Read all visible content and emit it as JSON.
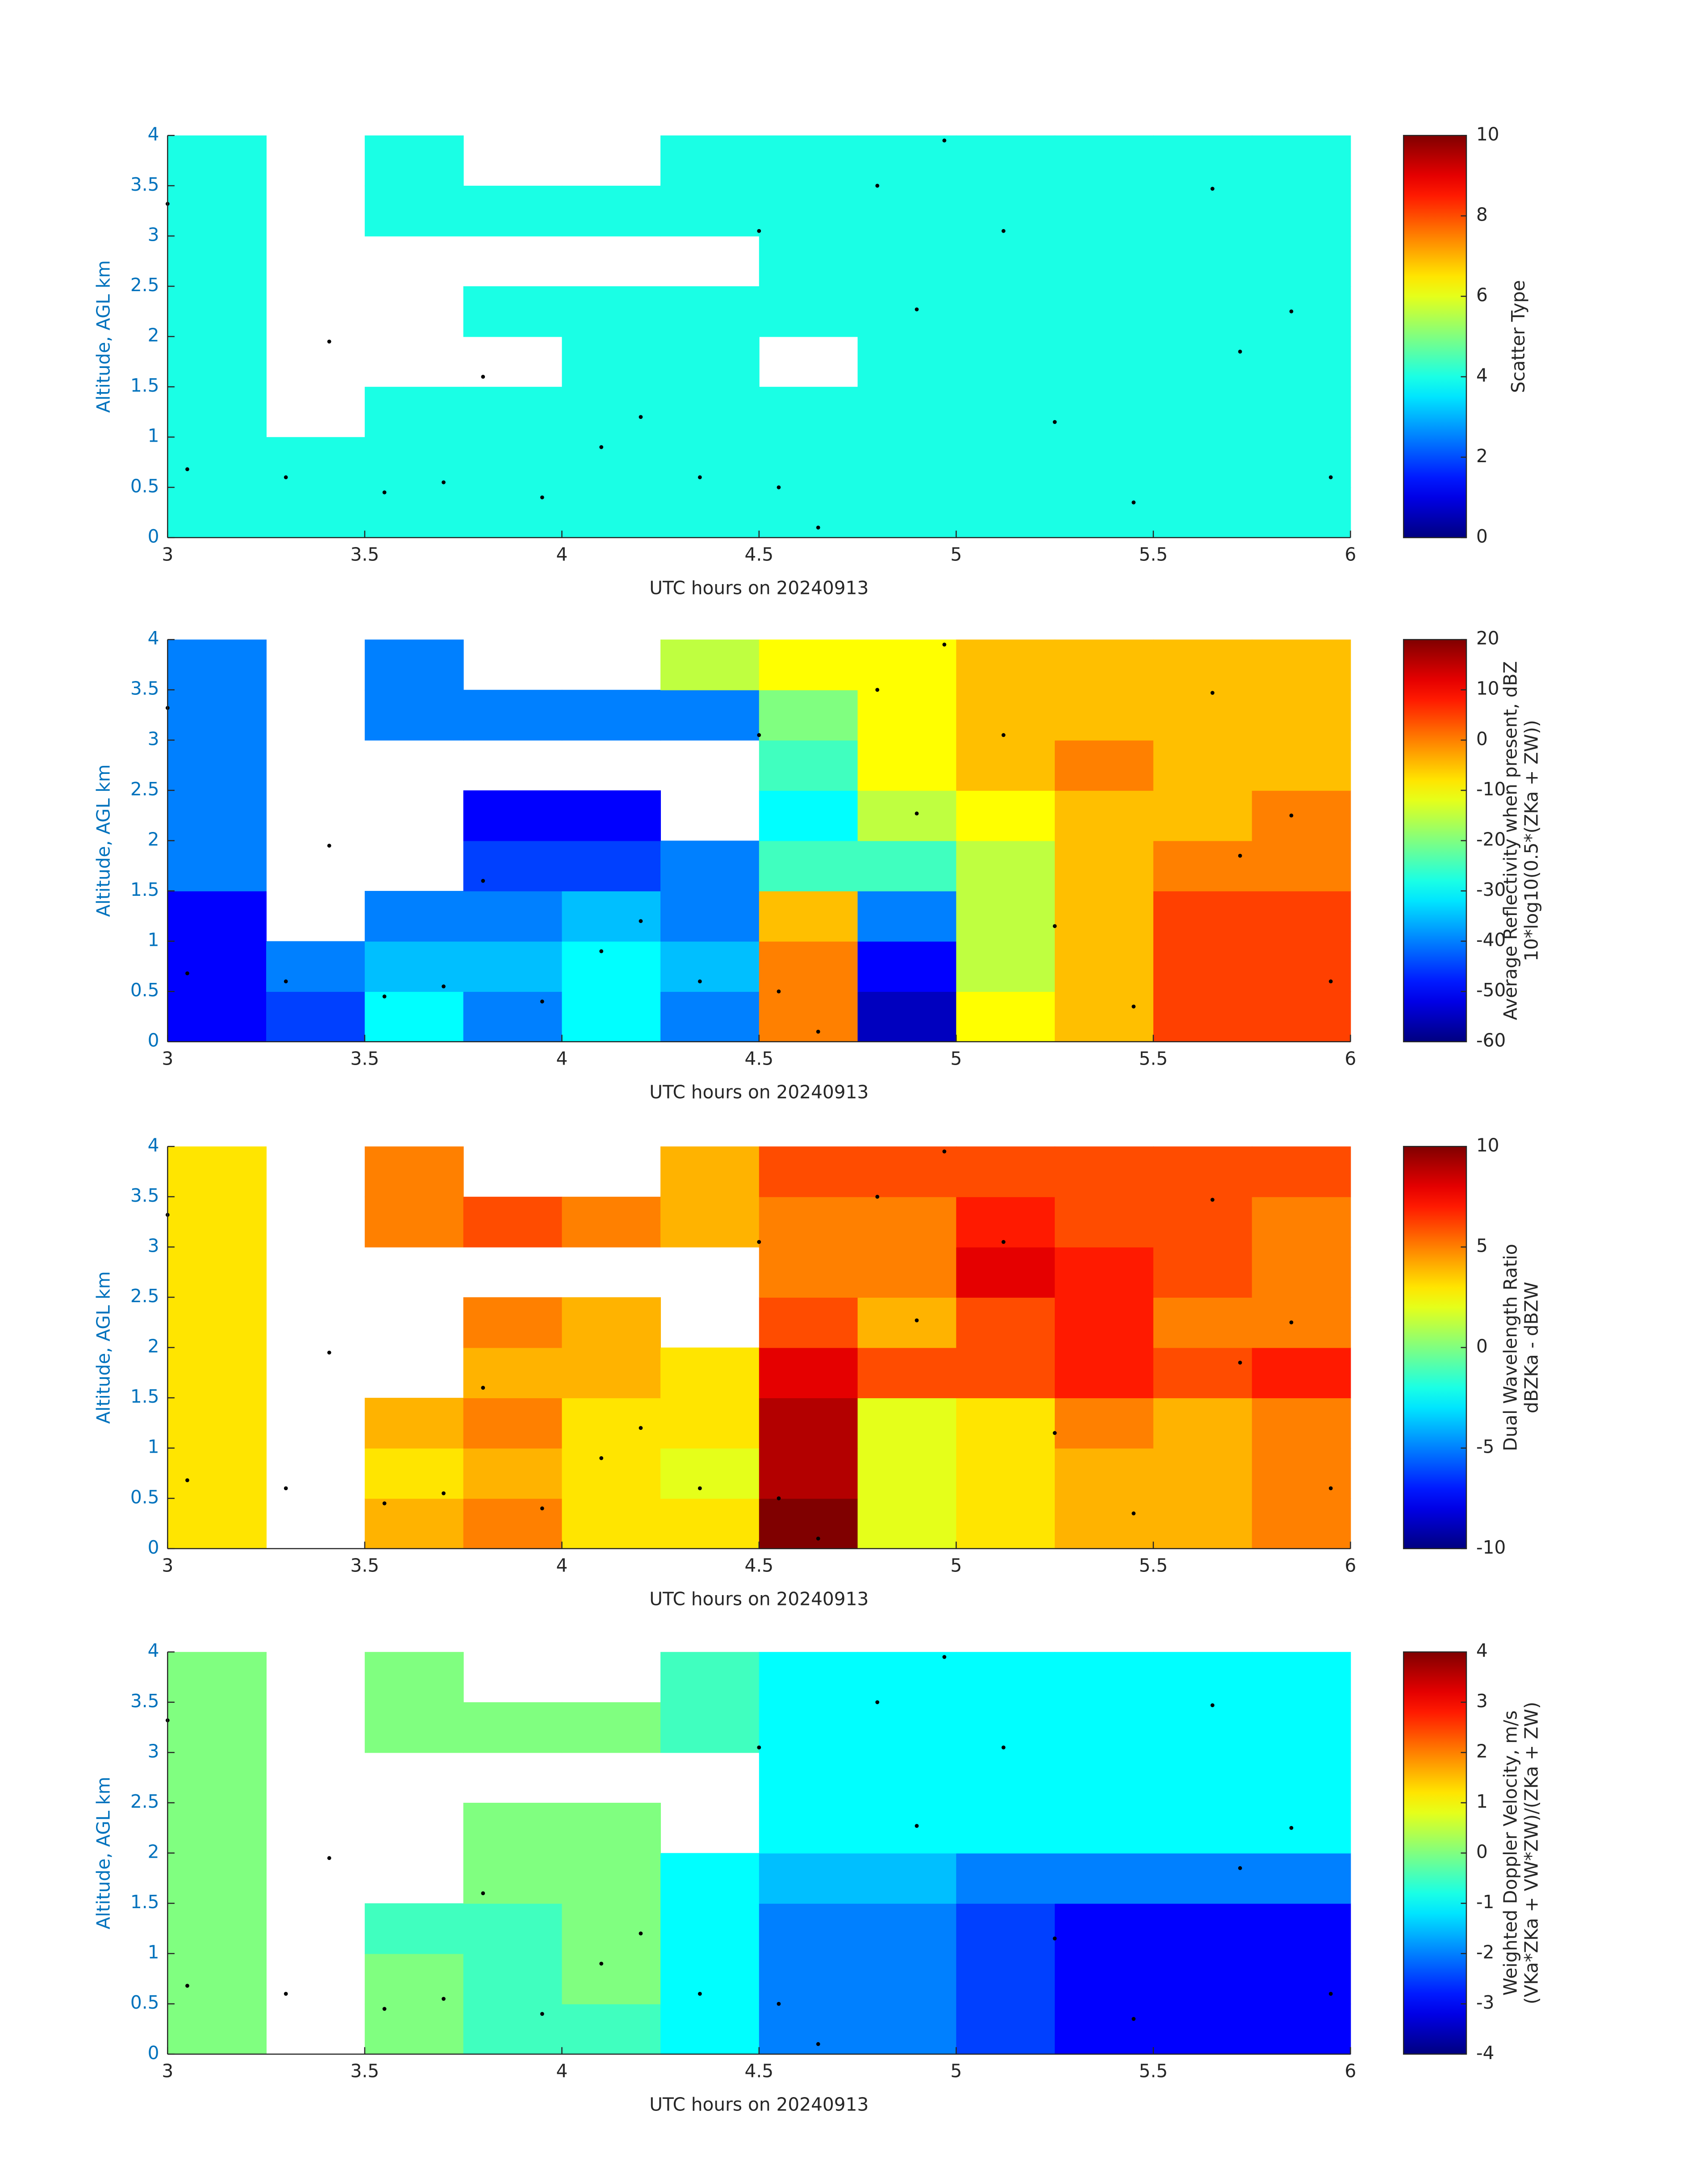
{
  "chart_data": [
    {
      "type": "heatmap",
      "colormap": "jet",
      "xlabel": "UTC hours on 20240913",
      "ylabel": "Altitude, AGL km",
      "xlim": [
        3,
        6
      ],
      "ylim": [
        0,
        4
      ],
      "xticks": [
        3,
        3.5,
        4,
        4.5,
        5,
        5.5,
        6
      ],
      "yticks": [
        0,
        0.5,
        1,
        1.5,
        2,
        2.5,
        3,
        3.5,
        4
      ],
      "x": [
        3.125,
        3.375,
        3.625,
        3.875,
        4.125,
        4.375,
        4.625,
        4.875,
        5.125,
        5.375,
        5.625,
        5.875
      ],
      "y": [
        0.25,
        0.75,
        1.25,
        1.75,
        2.25,
        2.75,
        3.25,
        3.75
      ],
      "values": [
        [
          4,
          4,
          4,
          4,
          4,
          4,
          4,
          4,
          4,
          4,
          4,
          4
        ],
        [
          4,
          4,
          4,
          4,
          4,
          4,
          4,
          4,
          4,
          4,
          4,
          4
        ],
        [
          4,
          null,
          4,
          4,
          4,
          4,
          4,
          4,
          4,
          4,
          4,
          4
        ],
        [
          4,
          null,
          null,
          null,
          4,
          4,
          null,
          4,
          4,
          4,
          4,
          4
        ],
        [
          4,
          null,
          null,
          4,
          4,
          4,
          4,
          4,
          4,
          4,
          4,
          4
        ],
        [
          4,
          null,
          null,
          null,
          null,
          null,
          4,
          4,
          4,
          4,
          4,
          4
        ],
        [
          4,
          null,
          4,
          4,
          4,
          4,
          4,
          4,
          4,
          4,
          4,
          4
        ],
        [
          4,
          null,
          4,
          null,
          null,
          4,
          4,
          4,
          4,
          4,
          4,
          4
        ]
      ],
      "points": {
        "color": "#000000",
        "x": [
          3.0,
          3.05,
          3.3,
          3.41,
          3.55,
          3.7,
          3.8,
          3.95,
          4.1,
          4.2,
          4.35,
          4.5,
          4.55,
          4.65,
          4.8,
          4.9,
          4.97,
          5.12,
          5.25,
          5.45,
          5.65,
          5.72,
          5.85,
          5.95
        ],
        "y": [
          3.32,
          0.68,
          0.6,
          1.95,
          0.45,
          0.55,
          1.6,
          0.4,
          0.9,
          1.2,
          0.6,
          3.05,
          0.5,
          0.1,
          3.5,
          2.27,
          3.95,
          3.05,
          1.15,
          0.35,
          3.47,
          1.85,
          2.25,
          0.6
        ]
      },
      "colorbar": {
        "label": [
          "Scatter Type"
        ],
        "lim": [
          0,
          10
        ],
        "ticks": [
          0,
          2,
          4,
          6,
          8,
          10
        ]
      }
    },
    {
      "type": "heatmap",
      "colormap": "jet",
      "xlabel": "UTC hours on 20240913",
      "ylabel": "Altitude, AGL km",
      "xlim": [
        3,
        6
      ],
      "ylim": [
        0,
        4
      ],
      "xticks": [
        3,
        3.5,
        4,
        4.5,
        5,
        5.5,
        6
      ],
      "yticks": [
        0,
        0.5,
        1,
        1.5,
        2,
        2.5,
        3,
        3.5,
        4
      ],
      "x": [
        3.125,
        3.375,
        3.625,
        3.875,
        4.125,
        4.375,
        4.625,
        4.875,
        5.125,
        5.375,
        5.625,
        5.875
      ],
      "y": [
        0.25,
        0.75,
        1.25,
        1.75,
        2.25,
        2.75,
        3.25,
        3.75
      ],
      "values": [
        [
          -50,
          -45,
          -30,
          -40,
          -30,
          -40,
          0,
          -55,
          -10,
          -5,
          5,
          5
        ],
        [
          -50,
          -40,
          -35,
          -35,
          -30,
          -35,
          0,
          -50,
          -15,
          -5,
          5,
          5
        ],
        [
          -50,
          null,
          -40,
          -40,
          -35,
          -40,
          -5,
          -40,
          -15,
          -5,
          5,
          5
        ],
        [
          -40,
          null,
          null,
          -45,
          -45,
          -40,
          -25,
          -25,
          -15,
          -5,
          0,
          0
        ],
        [
          -40,
          null,
          null,
          -50,
          -50,
          null,
          -30,
          -15,
          -10,
          -5,
          -5,
          0
        ],
        [
          -40,
          null,
          null,
          null,
          null,
          null,
          -25,
          -10,
          -5,
          0,
          -5,
          -5
        ],
        [
          -40,
          null,
          -40,
          -40,
          -40,
          -40,
          -20,
          -10,
          -5,
          -5,
          -5,
          -5
        ],
        [
          -40,
          null,
          -40,
          null,
          null,
          -15,
          -10,
          -10,
          -5,
          -5,
          -5,
          -5
        ]
      ],
      "points": {
        "color": "#000000",
        "x": [
          3.0,
          3.05,
          3.3,
          3.41,
          3.55,
          3.7,
          3.8,
          3.95,
          4.1,
          4.2,
          4.35,
          4.5,
          4.55,
          4.65,
          4.8,
          4.9,
          4.97,
          5.12,
          5.25,
          5.45,
          5.65,
          5.72,
          5.85,
          5.95
        ],
        "y": [
          3.32,
          0.68,
          0.6,
          1.95,
          0.45,
          0.55,
          1.6,
          0.4,
          0.9,
          1.2,
          0.6,
          3.05,
          0.5,
          0.1,
          3.5,
          2.27,
          3.95,
          3.05,
          1.15,
          0.35,
          3.47,
          1.85,
          2.25,
          0.6
        ]
      },
      "colorbar": {
        "label": [
          "Average Reflectivity when present, dBZ",
          "10*log10(0.5*(ZKa + ZW))"
        ],
        "lim": [
          -60,
          20
        ],
        "ticks": [
          -60,
          -50,
          -40,
          -30,
          -20,
          -10,
          0,
          10,
          20
        ]
      }
    },
    {
      "type": "heatmap",
      "colormap": "jet",
      "xlabel": "UTC hours on 20240913",
      "ylabel": "Altitude, AGL km",
      "xlim": [
        3,
        6
      ],
      "ylim": [
        0,
        4
      ],
      "xticks": [
        3,
        3.5,
        4,
        4.5,
        5,
        5.5,
        6
      ],
      "yticks": [
        0,
        0.5,
        1,
        1.5,
        2,
        2.5,
        3,
        3.5,
        4
      ],
      "x": [
        3.125,
        3.375,
        3.625,
        3.875,
        4.125,
        4.375,
        4.625,
        4.875,
        5.125,
        5.375,
        5.625,
        5.875
      ],
      "y": [
        0.25,
        0.75,
        1.25,
        1.75,
        2.25,
        2.75,
        3.25,
        3.75
      ],
      "values": [
        [
          3,
          null,
          4,
          5,
          3,
          3,
          10,
          2,
          3,
          4,
          4,
          5
        ],
        [
          3,
          null,
          3,
          4,
          3,
          2,
          9,
          2,
          3,
          4,
          4,
          5
        ],
        [
          3,
          null,
          4,
          5,
          3,
          3,
          9,
          2,
          3,
          5,
          4,
          5
        ],
        [
          3,
          null,
          null,
          4,
          4,
          3,
          8,
          6,
          6,
          7,
          6,
          7
        ],
        [
          3,
          null,
          null,
          5,
          4,
          null,
          6,
          4,
          6,
          7,
          5,
          5
        ],
        [
          3,
          null,
          null,
          null,
          null,
          null,
          5,
          5,
          8,
          7,
          6,
          5
        ],
        [
          3,
          null,
          5,
          6,
          5,
          4,
          5,
          5,
          7,
          6,
          6,
          5
        ],
        [
          3,
          null,
          5,
          null,
          null,
          4,
          6,
          6,
          6,
          6,
          6,
          6
        ]
      ],
      "points": {
        "color": "#000000",
        "x": [
          3.0,
          3.05,
          3.3,
          3.41,
          3.55,
          3.7,
          3.8,
          3.95,
          4.1,
          4.2,
          4.35,
          4.5,
          4.55,
          4.65,
          4.8,
          4.9,
          4.97,
          5.12,
          5.25,
          5.45,
          5.65,
          5.72,
          5.85,
          5.95
        ],
        "y": [
          3.32,
          0.68,
          0.6,
          1.95,
          0.45,
          0.55,
          1.6,
          0.4,
          0.9,
          1.2,
          0.6,
          3.05,
          0.5,
          0.1,
          3.5,
          2.27,
          3.95,
          3.05,
          1.15,
          0.35,
          3.47,
          1.85,
          2.25,
          0.6
        ]
      },
      "colorbar": {
        "label": [
          "Dual Wavelength Ratio",
          "dBZKa - dBZW"
        ],
        "lim": [
          -10,
          10
        ],
        "ticks": [
          -10,
          -5,
          0,
          5,
          10
        ]
      }
    },
    {
      "type": "heatmap",
      "colormap": "jet",
      "xlabel": "UTC hours on 20240913",
      "ylabel": "Altitude, AGL km",
      "xlim": [
        3,
        6
      ],
      "ylim": [
        0,
        4
      ],
      "xticks": [
        3,
        3.5,
        4,
        4.5,
        5,
        5.5,
        6
      ],
      "yticks": [
        0,
        0.5,
        1,
        1.5,
        2,
        2.5,
        3,
        3.5,
        4
      ],
      "x": [
        3.125,
        3.375,
        3.625,
        3.875,
        4.125,
        4.375,
        4.625,
        4.875,
        5.125,
        5.375,
        5.625,
        5.875
      ],
      "y": [
        0.25,
        0.75,
        1.25,
        1.75,
        2.25,
        2.75,
        3.25,
        3.75
      ],
      "values": [
        [
          0,
          null,
          0,
          -0.5,
          -0.5,
          -1,
          -2,
          -2,
          -2.5,
          -3,
          -3,
          -3
        ],
        [
          0,
          null,
          0,
          -0.5,
          0,
          -1,
          -2,
          -2,
          -2.5,
          -3,
          -3,
          -3
        ],
        [
          0,
          null,
          -0.5,
          -0.5,
          0,
          -1,
          -2,
          -2,
          -2.5,
          -3,
          -3,
          -3
        ],
        [
          0,
          null,
          null,
          0,
          0,
          -1,
          -1.5,
          -1.5,
          -2,
          -2,
          -2,
          -2
        ],
        [
          0,
          null,
          null,
          0,
          0,
          null,
          -1,
          -1,
          -1,
          -1,
          -1,
          -1
        ],
        [
          0,
          null,
          null,
          null,
          null,
          null,
          -1,
          -1,
          -1,
          -1,
          -1,
          -1
        ],
        [
          0,
          null,
          0,
          0,
          0,
          -0.5,
          -1,
          -1,
          -1,
          -1,
          -1,
          -1
        ],
        [
          0,
          null,
          0,
          null,
          null,
          -0.5,
          -1,
          -1,
          -1,
          -1,
          -1,
          -1
        ]
      ],
      "points": {
        "color": "#000000",
        "x": [
          3.0,
          3.05,
          3.3,
          3.41,
          3.55,
          3.7,
          3.8,
          3.95,
          4.1,
          4.2,
          4.35,
          4.5,
          4.55,
          4.65,
          4.8,
          4.9,
          4.97,
          5.12,
          5.25,
          5.45,
          5.65,
          5.72,
          5.85,
          5.95
        ],
        "y": [
          3.32,
          0.68,
          0.6,
          1.95,
          0.45,
          0.55,
          1.6,
          0.4,
          0.9,
          1.2,
          0.6,
          3.05,
          0.5,
          0.1,
          3.5,
          2.27,
          3.95,
          3.05,
          1.15,
          0.35,
          3.47,
          1.85,
          2.25,
          0.6
        ]
      },
      "colorbar": {
        "label": [
          "Weighted Doppler Velocity, m/s",
          "(VKa*ZKa + VW*ZW)/(ZKa + ZW)"
        ],
        "lim": [
          -4,
          4
        ],
        "ticks": [
          -4,
          -3,
          -2,
          -1,
          0,
          1,
          2,
          3,
          4
        ]
      }
    }
  ]
}
